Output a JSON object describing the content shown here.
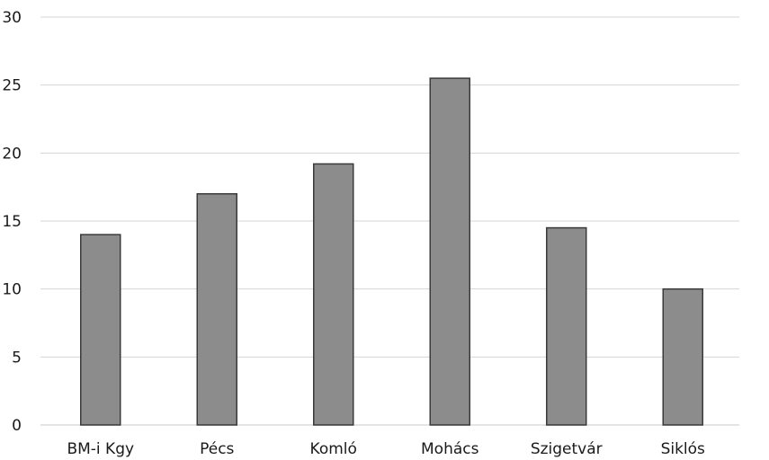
{
  "chart_data": {
    "type": "bar",
    "categories": [
      "BM-i Kgy",
      "Pécs",
      "Komló",
      "Mohács",
      "Szigetvár",
      "Siklós"
    ],
    "values": [
      14,
      17,
      19.2,
      25.5,
      14.5,
      10
    ],
    "title": "",
    "xlabel": "",
    "ylabel": "",
    "ylim": [
      0,
      30
    ],
    "yticks": [
      0,
      5,
      10,
      15,
      20,
      25,
      30
    ],
    "grid": true,
    "legend": "none",
    "bar_color": "#8c8c8c",
    "bar_edge_color": "#3a3a3a",
    "grid_color": "#d4d4d4"
  }
}
